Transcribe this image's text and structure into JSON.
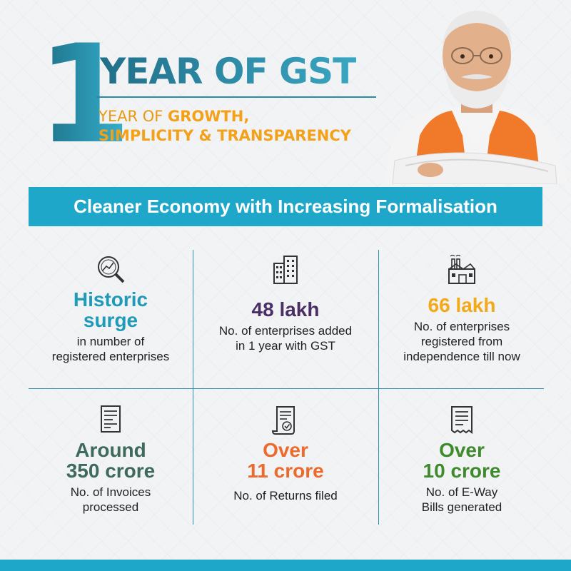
{
  "header": {
    "big_number": "1",
    "title": "YEAR OF GST",
    "subtitle_prefix": "YEAR OF ",
    "subtitle_line1_bold": "GROWTH,",
    "subtitle_line2": "SIMPLICITY & TRANSPARENCY"
  },
  "banner": {
    "text": "Cleaner Economy with Increasing Formalisation"
  },
  "stats": [
    {
      "icon": "magnifier-chart-icon",
      "headline": [
        "Historic",
        "surge"
      ],
      "desc": [
        "in number of",
        "registered enterprises"
      ],
      "color": "#1f9ab8"
    },
    {
      "icon": "buildings-icon",
      "headline": [
        "48 lakh"
      ],
      "desc": [
        "No. of enterprises added",
        "in 1 year with GST"
      ],
      "color": "#4a2f63"
    },
    {
      "icon": "factory-icon",
      "headline": [
        "66 lakh"
      ],
      "desc": [
        "No. of enterprises",
        "registered from",
        "independence till now"
      ],
      "color": "#f3a918"
    },
    {
      "icon": "invoice-icon",
      "headline": [
        "Around",
        "350 crore"
      ],
      "desc": [
        "No. of Invoices",
        "processed"
      ],
      "color": "#3d6a5a"
    },
    {
      "icon": "returns-document-icon",
      "headline": [
        "Over",
        "11 crore"
      ],
      "desc": [
        "No. of Returns filed"
      ],
      "color": "#ec6a2c"
    },
    {
      "icon": "receipt-icon",
      "headline": [
        "Over",
        "10 crore"
      ],
      "desc": [
        "No. of E-Way",
        "Bills generated"
      ],
      "color": "#3f8a2c"
    }
  ],
  "colors": {
    "accent": "#1ea7c9",
    "title_blue": "#2a87a0",
    "subtitle_orange": "#f4a11a"
  }
}
